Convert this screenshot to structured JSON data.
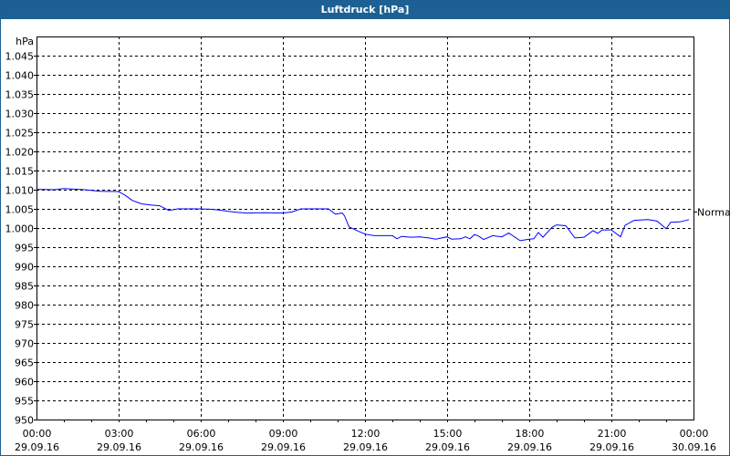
{
  "window": {
    "title": "Luftdruck [hPa]"
  },
  "chart_data": {
    "type": "line",
    "title": "Luftdruck [hPa]",
    "ylabel": "hPa",
    "xlabel": "",
    "ylim": [
      950,
      1050
    ],
    "y_ticks": [
      950,
      955,
      960,
      965,
      970,
      975,
      980,
      985,
      990,
      995,
      1000,
      1005,
      1010,
      1015,
      1020,
      1025,
      1030,
      1035,
      1040,
      1045
    ],
    "y_tick_labels": [
      "950",
      "955",
      "960",
      "965",
      "970",
      "975",
      "980",
      "985",
      "990",
      "995",
      "1.000",
      "1.005",
      "1.010",
      "1.015",
      "1.020",
      "1.025",
      "1.030",
      "1.035",
      "1.040",
      "1.045"
    ],
    "x_range": [
      "29.09.16 00:00",
      "30.09.16 00:00"
    ],
    "x_ticks": [
      {
        "time": "00:00",
        "date": "29.09.16"
      },
      {
        "time": "03:00",
        "date": "29.09.16"
      },
      {
        "time": "06:00",
        "date": "29.09.16"
      },
      {
        "time": "09:00",
        "date": "29.09.16"
      },
      {
        "time": "12:00",
        "date": "29.09.16"
      },
      {
        "time": "15:00",
        "date": "29.09.16"
      },
      {
        "time": "18:00",
        "date": "29.09.16"
      },
      {
        "time": "21:00",
        "date": "29.09.16"
      },
      {
        "time": "00:00",
        "date": "30.09.16"
      }
    ],
    "grid": true,
    "line_color": "#0000ff",
    "reference_line": {
      "label": "Normal",
      "value": 1004.3
    },
    "series": [
      {
        "x": [
          "00:00",
          "00:40",
          "01:00",
          "01:45",
          "02:20",
          "03:00",
          "03:15",
          "03:30",
          "03:50",
          "04:10",
          "04:30",
          "04:50",
          "05:10",
          "05:50",
          "06:20",
          "06:40",
          "07:10",
          "07:40",
          "08:20",
          "09:00",
          "09:20",
          "09:40",
          "10:40",
          "10:55",
          "11:10",
          "11:15",
          "11:25",
          "11:45",
          "12:00",
          "12:20",
          "13:00",
          "13:10",
          "13:20",
          "13:40",
          "14:00",
          "14:20",
          "14:35",
          "15:00",
          "15:10",
          "15:30",
          "15:40",
          "15:50",
          "16:00",
          "16:10",
          "16:20",
          "16:40",
          "17:00",
          "17:15",
          "17:40",
          "18:00",
          "18:10",
          "18:20",
          "18:30",
          "18:50",
          "19:00",
          "19:20",
          "19:40",
          "20:00",
          "20:20",
          "20:30",
          "20:40",
          "21:00",
          "21:20",
          "21:30",
          "21:50",
          "22:20",
          "22:40",
          "23:00",
          "23:10",
          "23:30",
          "23:50"
        ],
        "y": [
          1010.1,
          1010.0,
          1010.3,
          1010.0,
          1009.6,
          1009.5,
          1008.5,
          1007.2,
          1006.3,
          1006.0,
          1005.8,
          1004.6,
          1005.0,
          1005.0,
          1004.9,
          1004.7,
          1004.2,
          1003.9,
          1004.0,
          1003.9,
          1004.2,
          1005.0,
          1005.0,
          1003.6,
          1003.9,
          1003.2,
          1000.3,
          999.2,
          998.4,
          998.0,
          998.0,
          997.2,
          997.8,
          997.6,
          997.7,
          997.4,
          997.1,
          997.7,
          997.1,
          997.2,
          997.7,
          997.2,
          998.3,
          997.8,
          997.0,
          998.0,
          997.7,
          998.7,
          996.7,
          997.1,
          997.2,
          998.8,
          997.6,
          1000.2,
          1000.8,
          1000.6,
          997.4,
          997.6,
          999.3,
          998.6,
          999.5,
          999.5,
          997.7,
          1000.7,
          1002.0,
          1002.2,
          1001.8,
          999.8,
          1001.5,
          1001.6,
          1002.2
        ]
      }
    ]
  }
}
